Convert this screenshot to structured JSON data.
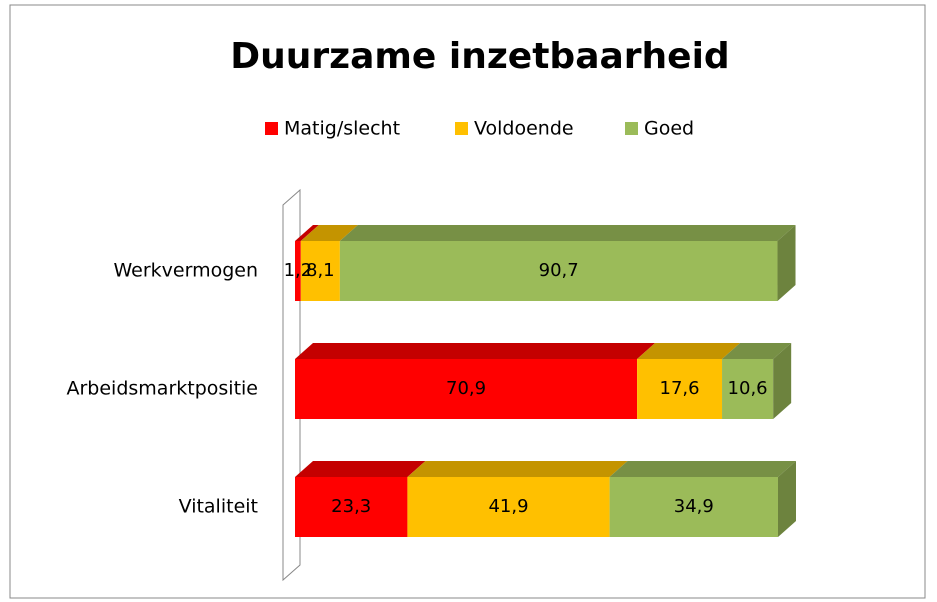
{
  "chart_data": {
    "type": "bar3d_stacked_horizontal",
    "title": "Duurzame inzetbaarheid",
    "categories": [
      "Werkvermogen",
      "Arbeidsmarktpositie",
      "Vitaliteit"
    ],
    "series": [
      {
        "name": "Matig/slecht",
        "color": "#ff0000",
        "values": [
          1.2,
          70.9,
          23.3
        ],
        "value_labels": [
          "1,2",
          "70,9",
          "23,3"
        ]
      },
      {
        "name": "Voldoende",
        "color": "#ffc000",
        "values": [
          8.1,
          17.6,
          41.9
        ],
        "value_labels": [
          "8,1",
          "17,6",
          "41,9"
        ]
      },
      {
        "name": "Goed",
        "color": "#9bbb59",
        "values": [
          90.7,
          10.6,
          34.9
        ],
        "value_labels": [
          "90,7",
          "10,6",
          "34,9"
        ]
      }
    ],
    "legend": "top"
  }
}
